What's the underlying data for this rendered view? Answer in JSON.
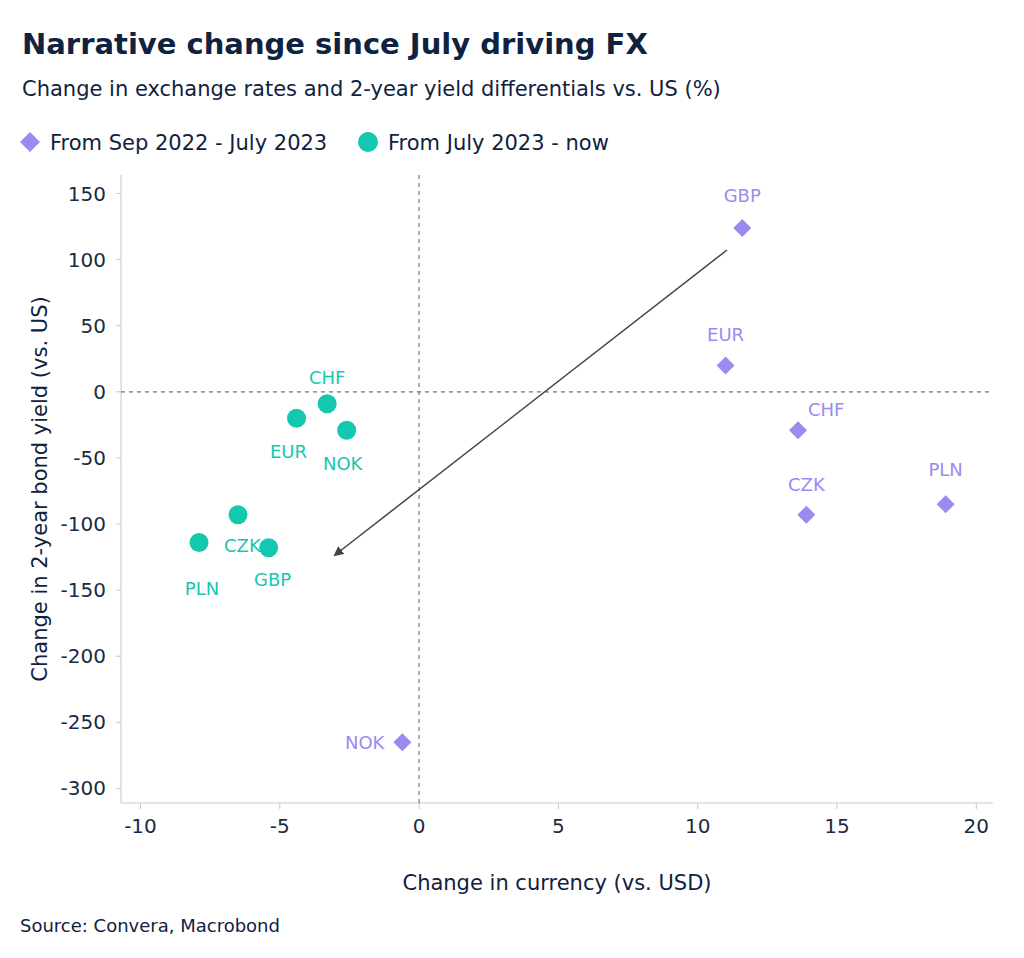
{
  "chart_data": {
    "type": "scatter",
    "title": "Narrative change since July driving FX",
    "subtitle": "Change in exchange rates and 2-year yield differentials vs. US (%)",
    "x_label": "Change in currency (vs. USD)",
    "y_label": "Change in 2-year bond yield (vs. US)",
    "source": "Source: Convera, Macrobond",
    "xlim": [
      -10.7,
      20.6
    ],
    "xticks": [
      -10,
      -5,
      0,
      5,
      10,
      15,
      20
    ],
    "ylim": [
      -311,
      164
    ],
    "yticks": [
      150,
      100,
      50,
      0,
      -50,
      -100,
      -150,
      -200,
      -250,
      -300
    ],
    "grid": false,
    "series": [
      {
        "name": "From Sep 2022 - July 2023",
        "color": "#9b8af0",
        "marker": "diamond",
        "labels": [
          "GBP",
          "EUR",
          "CHF",
          "CZK",
          "PLN",
          "NOK"
        ],
        "x": [
          11.6,
          11.0,
          13.6,
          13.9,
          18.9,
          -0.6
        ],
        "values": [
          124,
          20,
          -29,
          -93,
          -85,
          -265
        ]
      },
      {
        "name": "From July 2023 - now",
        "color": "#14c8b0",
        "marker": "circle",
        "labels": [
          "CHF",
          "EUR",
          "NOK",
          "CZK",
          "PLN",
          "GBP"
        ],
        "x": [
          -3.3,
          -4.4,
          -2.6,
          -6.5,
          -7.9,
          -5.4
        ],
        "values": [
          -9,
          -20,
          -29,
          -93,
          -114,
          -118
        ]
      }
    ]
  }
}
